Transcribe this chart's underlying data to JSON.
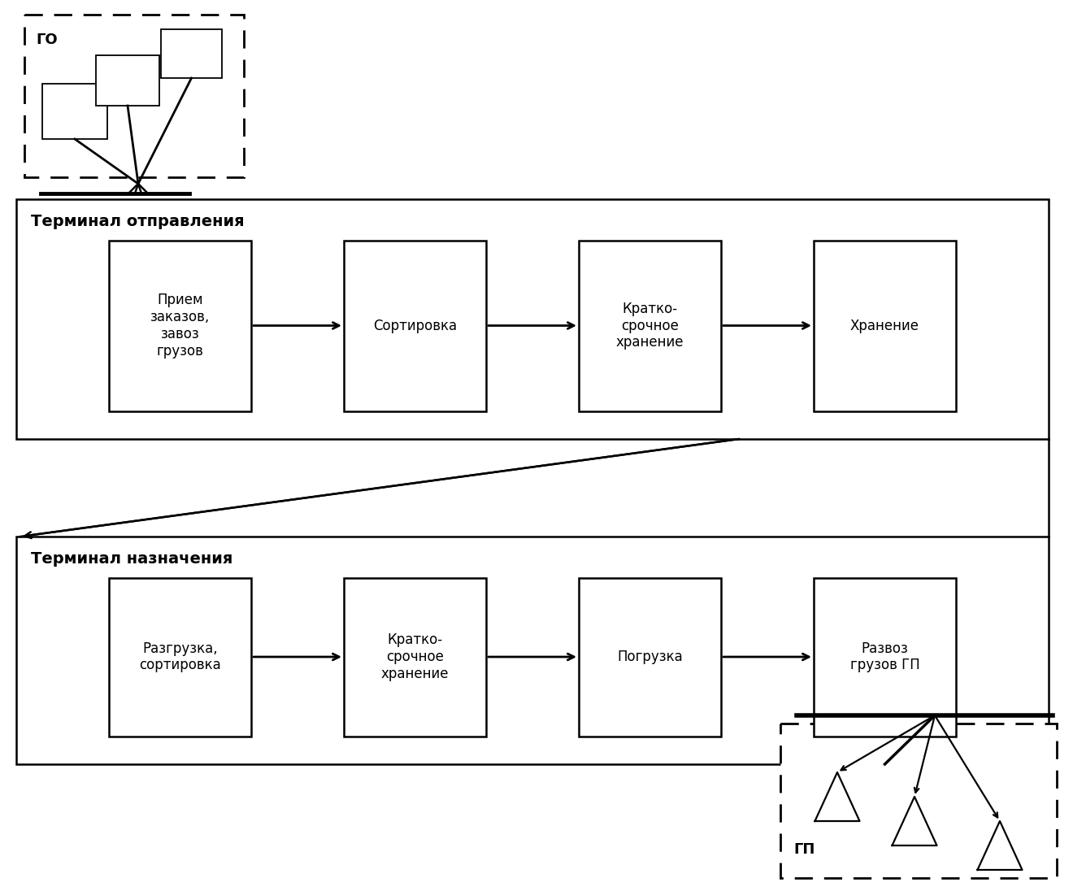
{
  "bg_color": "#ffffff",
  "fig_width": 13.2,
  "fig_height": 10.96,
  "terminal1_label": "Терминал отправления",
  "terminal1_boxes": [
    {
      "label": "Прием\nзаказов,\nзавоз\nгрузов"
    },
    {
      "label": "Сортировка"
    },
    {
      "label": "Кратко-\nсрочное\nхранение"
    },
    {
      "label": "Хранение"
    }
  ],
  "terminal2_label": "Терминал назначения",
  "terminal2_boxes": [
    {
      "label": "Разгрузка,\nсортировка"
    },
    {
      "label": "Кратко-\nсрочное\nхранение"
    },
    {
      "label": "Погрузка"
    },
    {
      "label": "Развоз\nгрузов ГП"
    }
  ],
  "go_label": "ГО",
  "gp_label": "ГП",
  "font_size_box": 12,
  "font_size_label": 14,
  "font_size_symbol": 13
}
